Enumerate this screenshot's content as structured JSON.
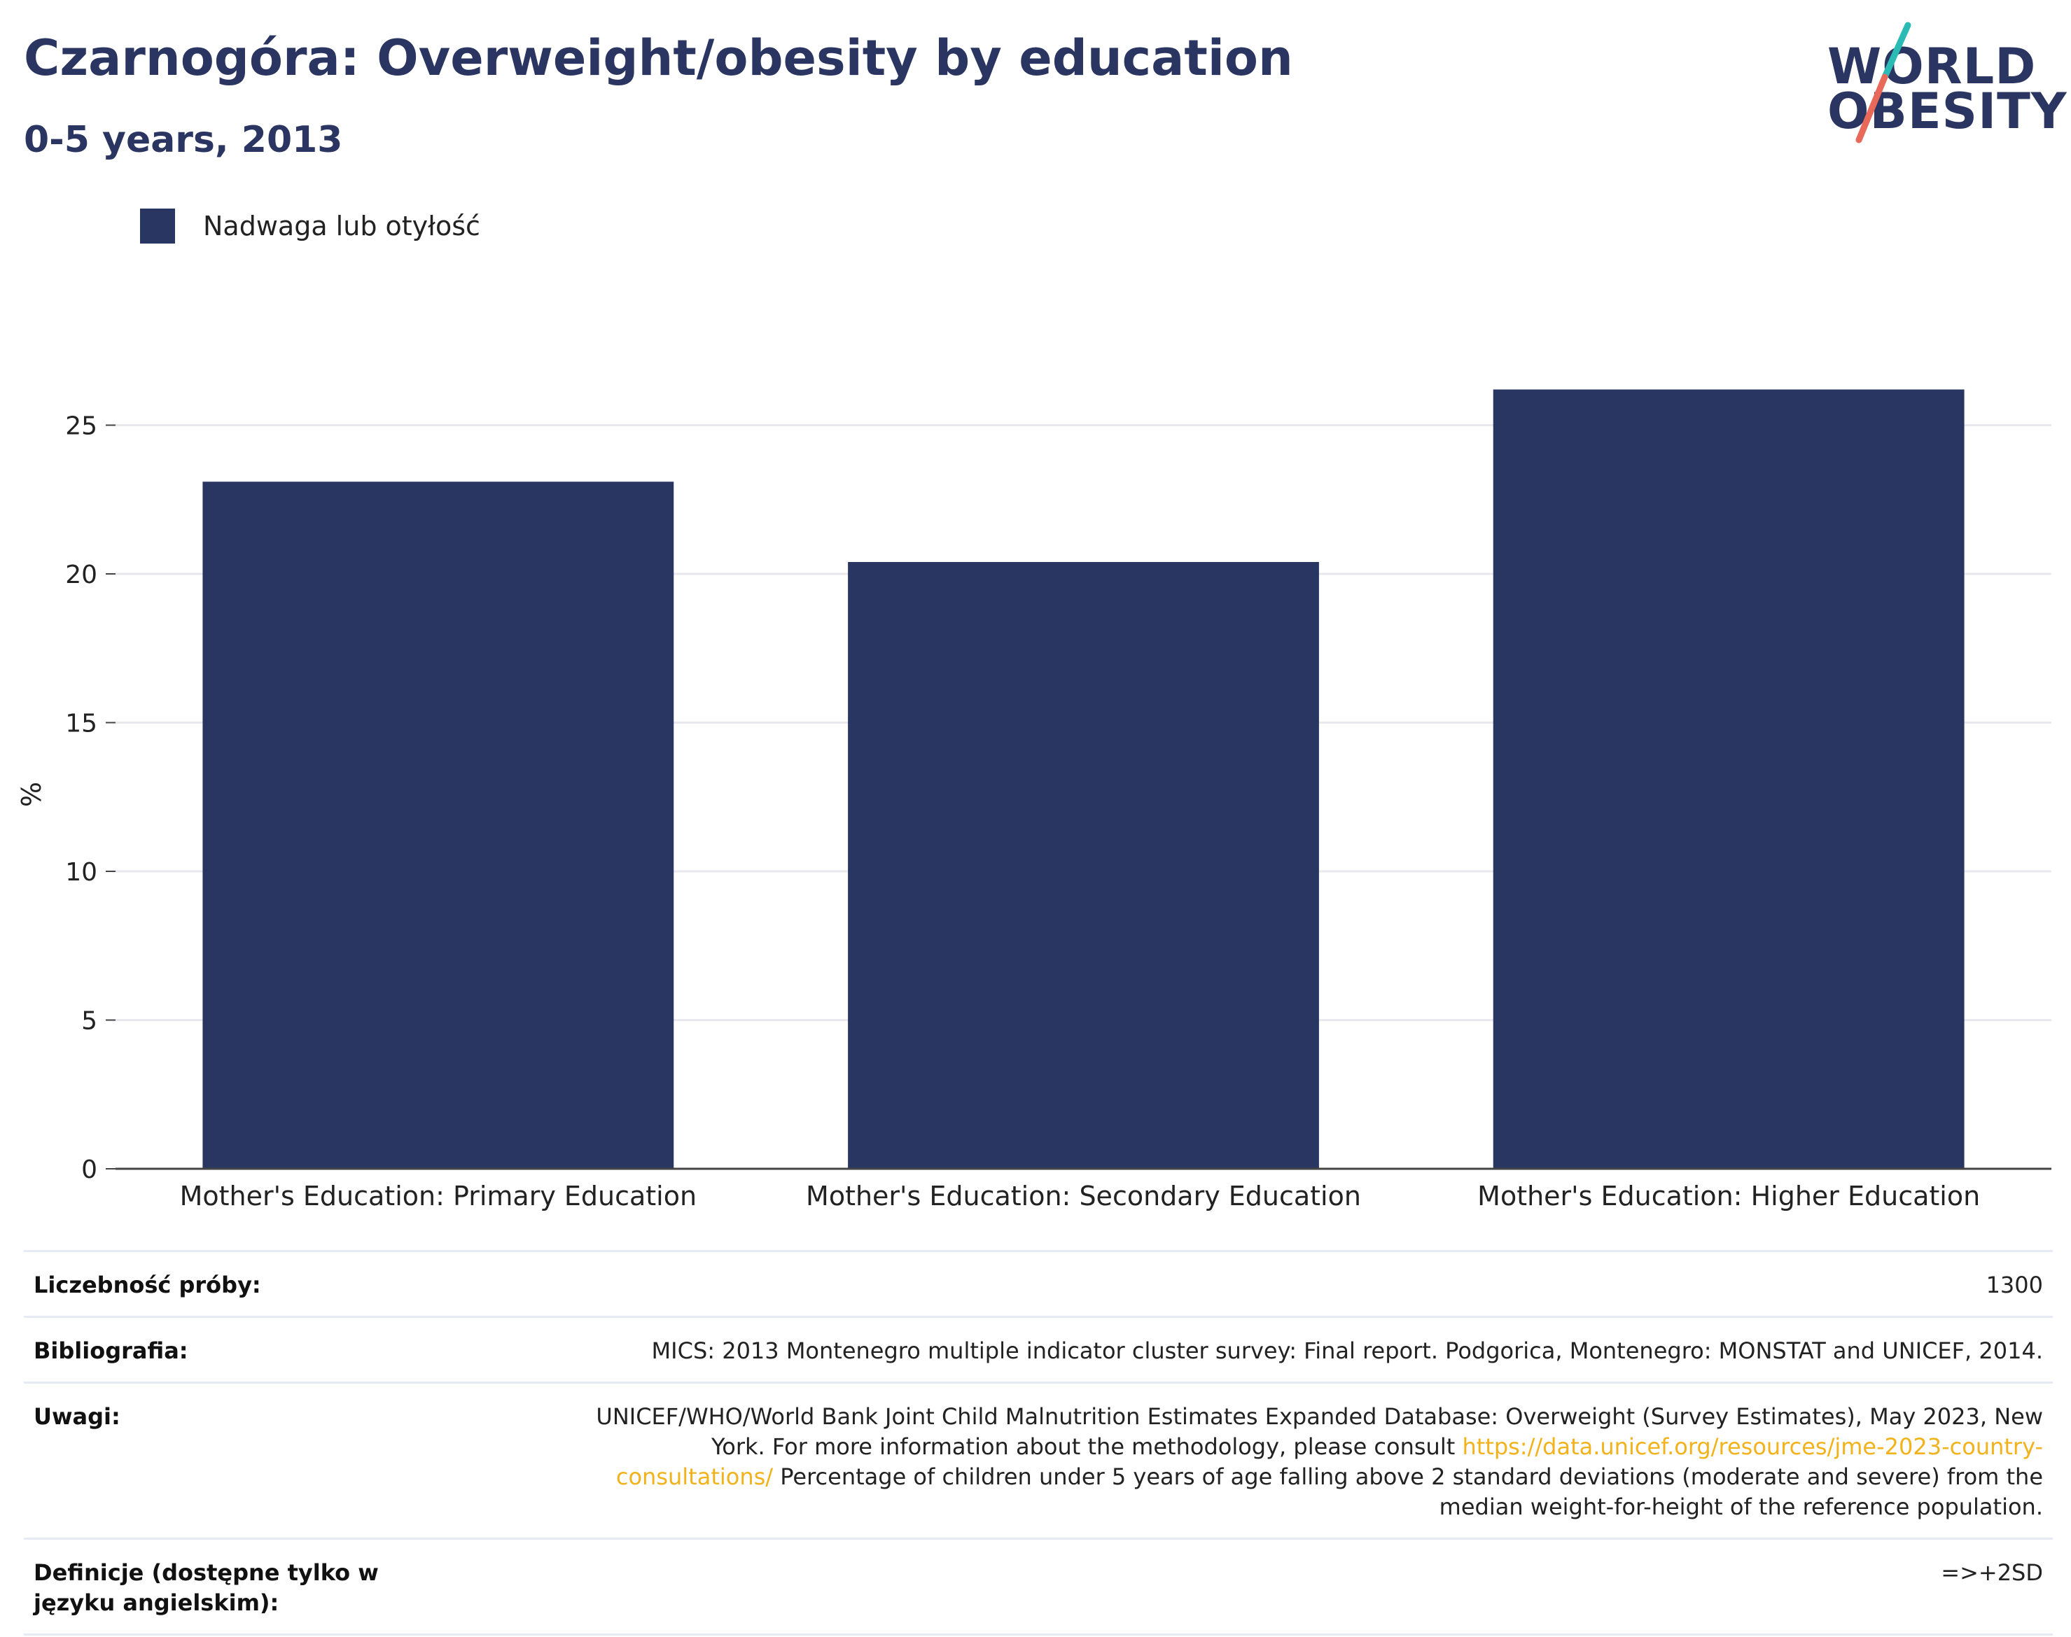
{
  "header": {
    "title": "Czarnogóra: Overweight/obesity by education",
    "subtitle": "0-5 years, 2013"
  },
  "logo": {
    "line1": "WORLD",
    "line2": "OBESITY",
    "accent_colors": [
      "#2bbbb4",
      "#e8685a"
    ]
  },
  "legend": {
    "items": [
      {
        "label": "Nadwaga lub otyłość",
        "color": "#2a3662"
      }
    ]
  },
  "chart_data": {
    "type": "bar",
    "categories": [
      "Mother's Education: Primary Education",
      "Mother's Education: Secondary Education",
      "Mother's Education: Higher Education"
    ],
    "series": [
      {
        "name": "Nadwaga lub otyłość",
        "values": [
          23.1,
          20.4,
          26.2
        ],
        "color": "#2a3662"
      }
    ],
    "ylabel": "%",
    "ylim": [
      0,
      28
    ],
    "yticks": [
      0,
      5,
      10,
      15,
      20,
      25
    ],
    "grid": true,
    "legend_position": "top-left"
  },
  "info": {
    "rows": [
      {
        "key": "Liczebność próby:",
        "value": "1300"
      },
      {
        "key": "Bibliografia:",
        "value": "MICS: 2013 Montenegro multiple indicator cluster survey: Final report. Podgorica, Montenegro: MONSTAT and UNICEF, 2014."
      },
      {
        "key": "Uwagi:",
        "value_before": "UNICEF/WHO/World Bank Joint Child Malnutrition Estimates Expanded Database: Overweight (Survey Estimates), May 2023, New York. For more information about the methodology, please consult ",
        "link": "https://data.unicef.org/resources/jme-2023-country-consultations/",
        "value_after": " Percentage of children under 5 years of age falling above 2 standard deviations (moderate and severe) from the median weight-for-height of the reference population."
      },
      {
        "key": "Definicje (dostępne tylko w języku angielskim):",
        "value": "=>+2SD"
      }
    ]
  }
}
